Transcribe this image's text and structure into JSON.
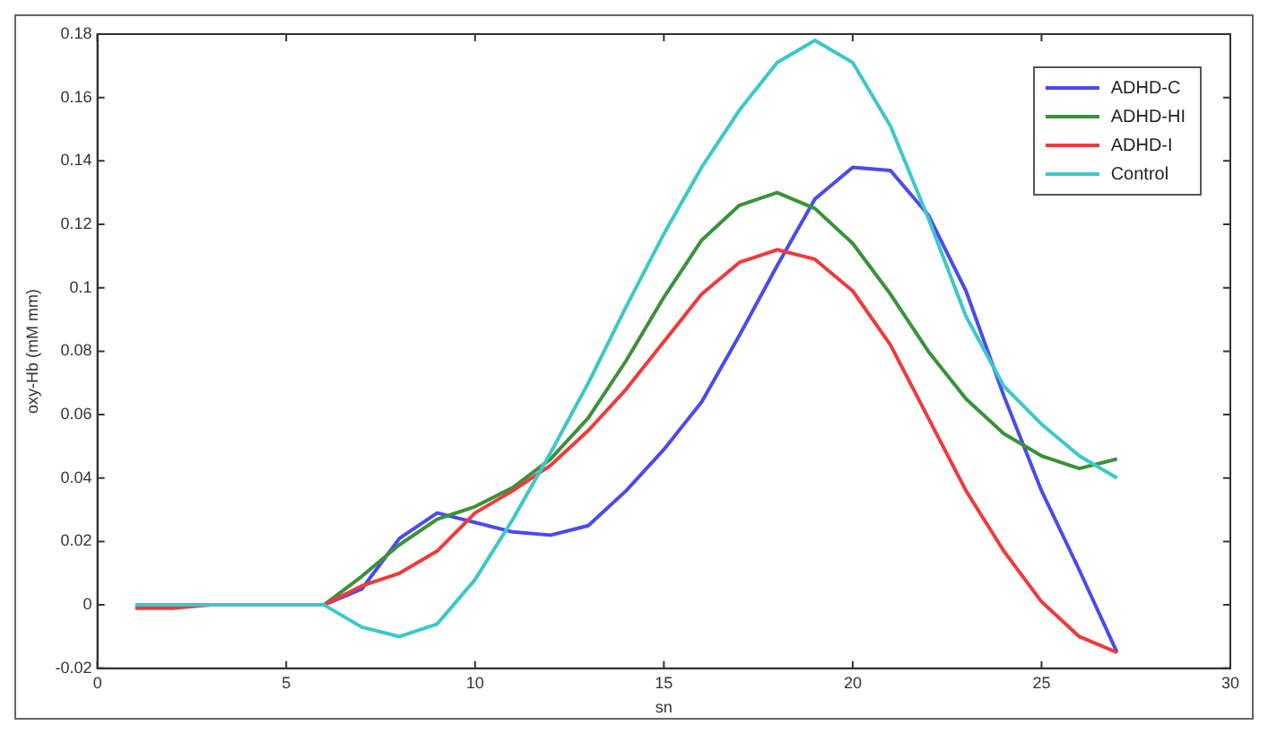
{
  "chart_data": {
    "type": "line",
    "xlabel": "sn",
    "ylabel": "oxy-Hb (mM mm)",
    "x": [
      1,
      2,
      3,
      4,
      5,
      6,
      7,
      8,
      9,
      10,
      11,
      12,
      13,
      14,
      15,
      16,
      17,
      18,
      19,
      20,
      21,
      22,
      23,
      24,
      25,
      26,
      27
    ],
    "series": [
      {
        "name": "ADHD-C",
        "color": "#4a4af0",
        "values": [
          null,
          null,
          null,
          null,
          null,
          0,
          0.005,
          0.021,
          0.029,
          0.026,
          0.023,
          0.022,
          0.025,
          0.036,
          0.049,
          0.064,
          0.085,
          0.107,
          0.128,
          0.138,
          0.137,
          0.123,
          0.099,
          0.066,
          0.036,
          0.011,
          -0.015
        ]
      },
      {
        "name": "ADHD-HI",
        "color": "#3a923a",
        "values": [
          null,
          null,
          null,
          null,
          null,
          0,
          0.009,
          0.019,
          0.027,
          0.031,
          0.037,
          0.046,
          0.059,
          0.077,
          0.097,
          0.115,
          0.126,
          0.13,
          0.125,
          0.114,
          0.098,
          0.08,
          0.065,
          0.054,
          0.047,
          0.043,
          0.046
        ]
      },
      {
        "name": "ADHD-I",
        "color": "#f03a3a",
        "values": [
          -0.001,
          -0.001,
          0,
          0,
          0,
          0,
          0.006,
          0.01,
          0.017,
          0.029,
          0.036,
          0.044,
          0.055,
          0.068,
          0.083,
          0.098,
          0.108,
          0.112,
          0.109,
          0.099,
          0.082,
          0.059,
          0.036,
          0.017,
          0.001,
          -0.01,
          -0.015
        ]
      },
      {
        "name": "Control",
        "color": "#3cc8c8",
        "values": [
          0,
          0,
          0,
          0,
          0,
          0,
          -0.007,
          -0.01,
          -0.006,
          0.008,
          0.027,
          0.048,
          0.07,
          0.094,
          0.117,
          0.138,
          0.156,
          0.171,
          0.178,
          0.171,
          0.151,
          0.122,
          0.091,
          0.069,
          0.057,
          0.047,
          0.04
        ]
      }
    ],
    "xlim": [
      0,
      30
    ],
    "xticks": [
      0,
      5,
      10,
      15,
      20,
      25,
      30
    ],
    "ylim": [
      -0.02,
      0.18
    ],
    "yticks": [
      -0.02,
      0,
      0.02,
      0.04,
      0.06,
      0.08,
      0.1,
      0.12,
      0.14,
      0.16,
      0.18
    ],
    "legend": "top right",
    "grid": false,
    "marker": "none",
    "line_style": "solid"
  }
}
